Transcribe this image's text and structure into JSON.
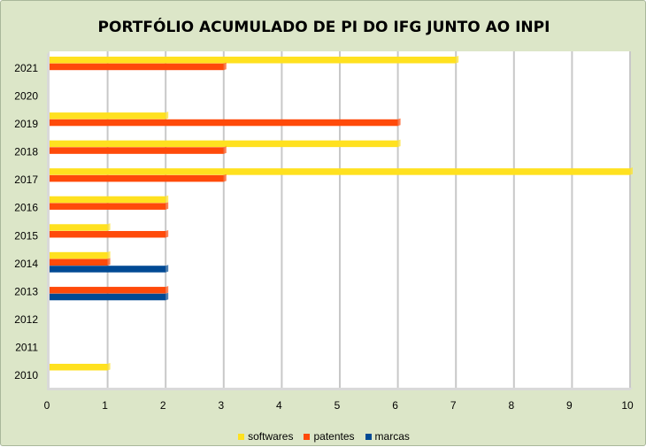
{
  "chart_data": {
    "type": "bar",
    "orientation": "horizontal",
    "title": "PORTFÓLIO ACUMULADO DE PI DO IFG JUNTO AO INPI",
    "categories": [
      "2010",
      "2011",
      "2012",
      "2013",
      "2014",
      "2015",
      "2016",
      "2017",
      "2018",
      "2019",
      "2020",
      "2021"
    ],
    "series": [
      {
        "name": "softwares",
        "color": "#ffe11f",
        "values": [
          1,
          0,
          0,
          0,
          1,
          1,
          2,
          10,
          6,
          2,
          0,
          7
        ]
      },
      {
        "name": "patentes",
        "color": "#ff4a0a",
        "values": [
          0,
          0,
          0,
          2,
          1,
          2,
          2,
          3,
          3,
          6,
          0,
          3
        ]
      },
      {
        "name": "marcas",
        "color": "#004a94",
        "values": [
          0,
          0,
          0,
          2,
          2,
          0,
          0,
          0,
          0,
          0,
          0,
          0
        ]
      }
    ],
    "xlim": [
      0,
      10
    ],
    "xticks": [
      "0",
      "1",
      "2",
      "3",
      "4",
      "5",
      "6",
      "7",
      "8",
      "9",
      "10"
    ],
    "grid": true,
    "legend_position": "bottom"
  }
}
